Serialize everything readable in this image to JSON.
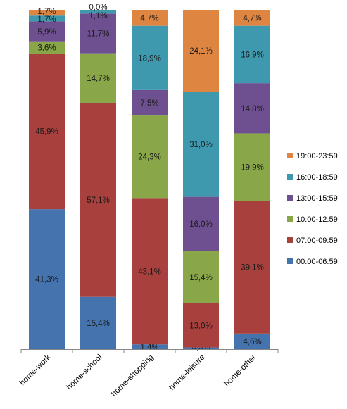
{
  "chart_data": {
    "type": "bar",
    "stacked": true,
    "percent_stacked": true,
    "categories": [
      "home-work",
      "home-school",
      "home-shopping",
      "home-leisure",
      "home-other"
    ],
    "series": [
      {
        "name": "00:00-06:59",
        "color": "#4573AE",
        "values": [
          41.3,
          15.4,
          1.4,
          0.5,
          4.6
        ],
        "labels": [
          "41,3%",
          "15,4%",
          "1,4%",
          "0,5%",
          "4,6%"
        ]
      },
      {
        "name": "07:00-09:59",
        "color": "#A8403E",
        "values": [
          45.9,
          57.1,
          43.1,
          13.0,
          39.1
        ],
        "labels": [
          "45,9%",
          "57,1%",
          "43,1%",
          "13,0%",
          "39,1%"
        ]
      },
      {
        "name": "10:00-12:59",
        "color": "#89A649",
        "values": [
          3.6,
          14.7,
          24.3,
          15.4,
          19.9
        ],
        "labels": [
          "3,6%",
          "14,7%",
          "24,3%",
          "15,4%",
          "19,9%"
        ]
      },
      {
        "name": "13:00-15:59",
        "color": "#6E5091",
        "values": [
          5.9,
          11.7,
          7.5,
          16.0,
          14.8
        ],
        "labels": [
          "5,9%",
          "11,7%",
          "7,5%",
          "16,0%",
          "14,8%"
        ]
      },
      {
        "name": "16:00-18:59",
        "color": "#3E99AF",
        "values": [
          1.7,
          1.1,
          18.9,
          31.0,
          16.9
        ],
        "labels": [
          "1,7%",
          "1,1%",
          "18,9%",
          "31,0%",
          "16,9%"
        ]
      },
      {
        "name": "19:00-23:59",
        "color": "#DE8542",
        "values": [
          1.7,
          0.0,
          4.7,
          24.1,
          4.7
        ],
        "labels": [
          "1,7%",
          "0,0%",
          "4,7%",
          "24,1%",
          "4,7%"
        ]
      }
    ],
    "legend_position": "right",
    "legend_order": "reversed",
    "grid": false
  }
}
